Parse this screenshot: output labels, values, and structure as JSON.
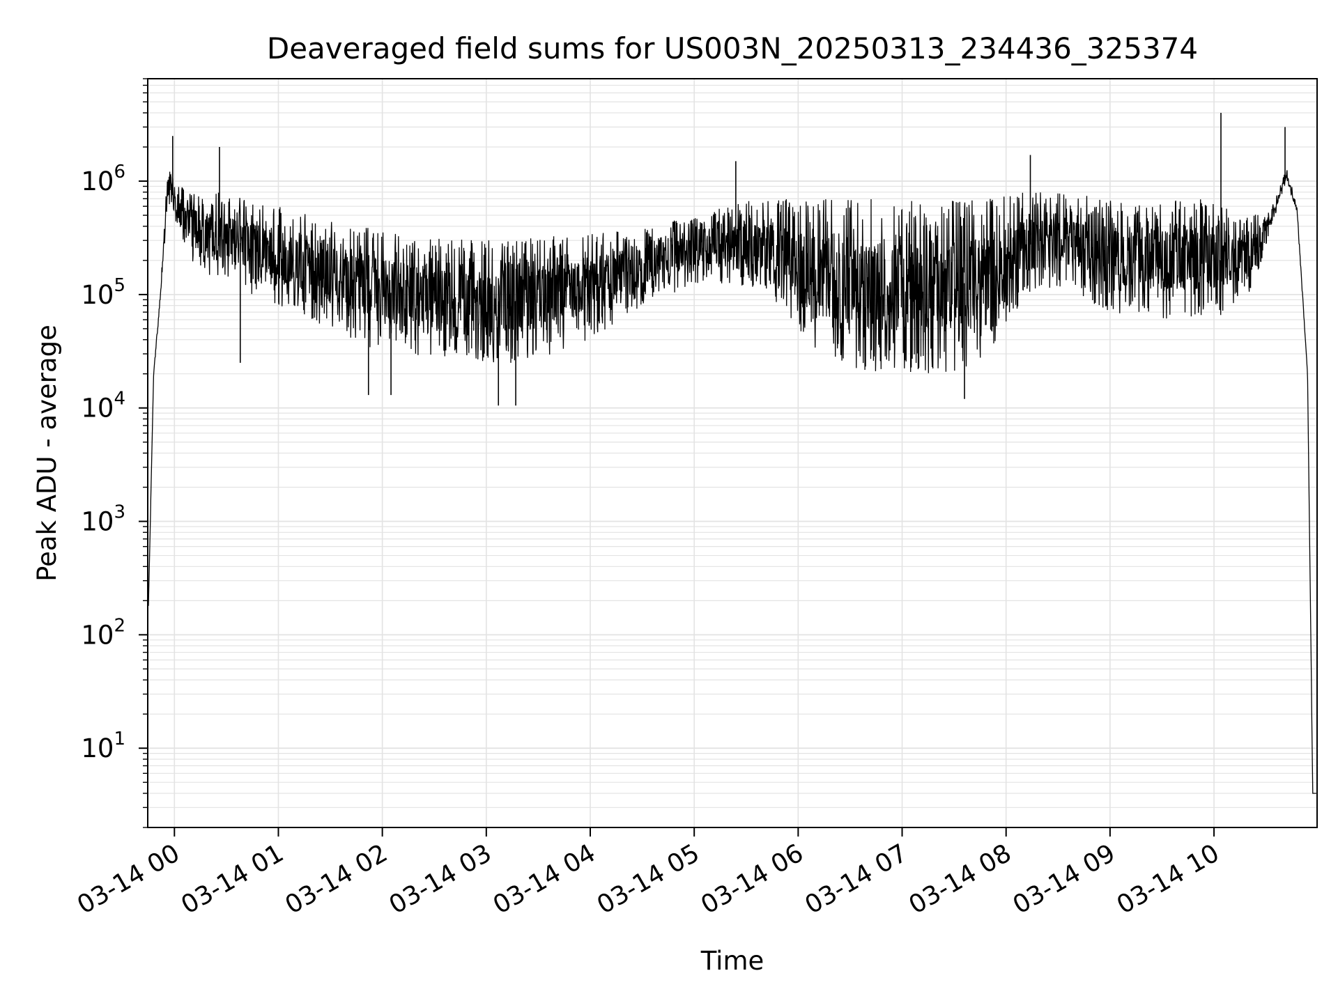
{
  "chart_data": {
    "type": "line",
    "title": "Deaveraged field sums for US003N_20250313_234436_325374",
    "xlabel": "Time",
    "ylabel": "Peak ADU - average",
    "y_scale": "log",
    "ylim": [
      2,
      8000000
    ],
    "xlim": [
      "2025-03-13 23:44:36",
      "2025-03-14 10:59:30"
    ],
    "grid": true,
    "line_color": "#000000",
    "x_tick_labels": [
      "03-14 00",
      "03-14 01",
      "03-14 02",
      "03-14 03",
      "03-14 04",
      "03-14 05",
      "03-14 06",
      "03-14 07",
      "03-14 08",
      "03-14 09",
      "03-14 10"
    ],
    "x_tick_values": [
      "2025-03-14 00:00",
      "2025-03-14 01:00",
      "2025-03-14 02:00",
      "2025-03-14 03:00",
      "2025-03-14 04:00",
      "2025-03-14 05:00",
      "2025-03-14 06:00",
      "2025-03-14 07:00",
      "2025-03-14 08:00",
      "2025-03-14 09:00",
      "2025-03-14 10:00"
    ],
    "y_tick_labels": [
      {
        "base": "10",
        "exp": "1",
        "value": 10
      },
      {
        "base": "10",
        "exp": "2",
        "value": 100
      },
      {
        "base": "10",
        "exp": "3",
        "value": 1000
      },
      {
        "base": "10",
        "exp": "4",
        "value": 10000
      },
      {
        "base": "10",
        "exp": "5",
        "value": 100000
      },
      {
        "base": "10",
        "exp": "6",
        "value": 1000000
      }
    ],
    "series": [
      {
        "envelope": [
          {
            "t": "2025-03-13 23:45",
            "lo": 180,
            "hi": 180
          },
          {
            "t": "2025-03-13 23:48",
            "lo": 20000,
            "hi": 20000
          },
          {
            "t": "2025-03-13 23:52",
            "lo": 80000,
            "hi": 120000
          },
          {
            "t": "2025-03-13 23:56",
            "lo": 700000,
            "hi": 1300000
          },
          {
            "t": "2025-03-14 00:03",
            "lo": 300000,
            "hi": 1000000
          },
          {
            "t": "2025-03-14 00:15",
            "lo": 150000,
            "hi": 800000
          },
          {
            "t": "2025-03-14 00:30",
            "lo": 120000,
            "hi": 800000
          },
          {
            "t": "2025-03-14 00:45",
            "lo": 100000,
            "hi": 700000
          },
          {
            "t": "2025-03-14 01:00",
            "lo": 80000,
            "hi": 600000
          },
          {
            "t": "2025-03-14 01:30",
            "lo": 50000,
            "hi": 450000
          },
          {
            "t": "2025-03-14 02:00",
            "lo": 30000,
            "hi": 380000
          },
          {
            "t": "2025-03-14 02:30",
            "lo": 25000,
            "hi": 320000
          },
          {
            "t": "2025-03-14 03:00",
            "lo": 25000,
            "hi": 300000
          },
          {
            "t": "2025-03-14 03:30",
            "lo": 25000,
            "hi": 320000
          },
          {
            "t": "2025-03-14 04:00",
            "lo": 40000,
            "hi": 350000
          },
          {
            "t": "2025-03-14 04:30",
            "lo": 80000,
            "hi": 380000
          },
          {
            "t": "2025-03-14 05:00",
            "lo": 120000,
            "hi": 500000
          },
          {
            "t": "2025-03-14 05:30",
            "lo": 120000,
            "hi": 700000
          },
          {
            "t": "2025-03-14 05:50",
            "lo": 80000,
            "hi": 700000
          },
          {
            "t": "2025-03-14 06:10",
            "lo": 30000,
            "hi": 700000
          },
          {
            "t": "2025-03-14 06:30",
            "lo": 22000,
            "hi": 700000
          },
          {
            "t": "2025-03-14 07:00",
            "lo": 20000,
            "hi": 700000
          },
          {
            "t": "2025-03-14 07:30",
            "lo": 20000,
            "hi": 700000
          },
          {
            "t": "2025-03-14 07:50",
            "lo": 30000,
            "hi": 700000
          },
          {
            "t": "2025-03-14 08:10",
            "lo": 90000,
            "hi": 800000
          },
          {
            "t": "2025-03-14 08:30",
            "lo": 120000,
            "hi": 800000
          },
          {
            "t": "2025-03-14 09:00",
            "lo": 70000,
            "hi": 700000
          },
          {
            "t": "2025-03-14 09:30",
            "lo": 60000,
            "hi": 700000
          },
          {
            "t": "2025-03-14 10:00",
            "lo": 60000,
            "hi": 700000
          },
          {
            "t": "2025-03-14 10:20",
            "lo": 80000,
            "hi": 500000
          },
          {
            "t": "2025-03-14 10:33",
            "lo": 400000,
            "hi": 600000
          },
          {
            "t": "2025-03-14 10:42",
            "lo": 1000000,
            "hi": 1300000
          },
          {
            "t": "2025-03-14 10:48",
            "lo": 500000,
            "hi": 600000
          },
          {
            "t": "2025-03-14 10:54",
            "lo": 20000,
            "hi": 20000
          },
          {
            "t": "2025-03-14 10:57",
            "lo": 4,
            "hi": 4
          },
          {
            "t": "2025-03-14 10:59",
            "lo": 4,
            "hi": 4
          }
        ],
        "spikes": [
          {
            "t": "2025-03-13 23:59",
            "value": 2500000
          },
          {
            "t": "2025-03-14 00:26",
            "value": 2000000
          },
          {
            "t": "2025-03-14 00:38",
            "value": 25000
          },
          {
            "t": "2025-03-14 01:52",
            "value": 13000
          },
          {
            "t": "2025-03-14 02:05",
            "value": 13000
          },
          {
            "t": "2025-03-14 03:07",
            "value": 10500
          },
          {
            "t": "2025-03-14 03:17",
            "value": 10500
          },
          {
            "t": "2025-03-14 05:24",
            "value": 1500000
          },
          {
            "t": "2025-03-14 07:36",
            "value": 12000
          },
          {
            "t": "2025-03-14 08:14",
            "value": 1700000
          },
          {
            "t": "2025-03-14 10:04",
            "value": 4000000
          },
          {
            "t": "2025-03-14 10:41",
            "value": 3000000
          }
        ]
      }
    ]
  }
}
